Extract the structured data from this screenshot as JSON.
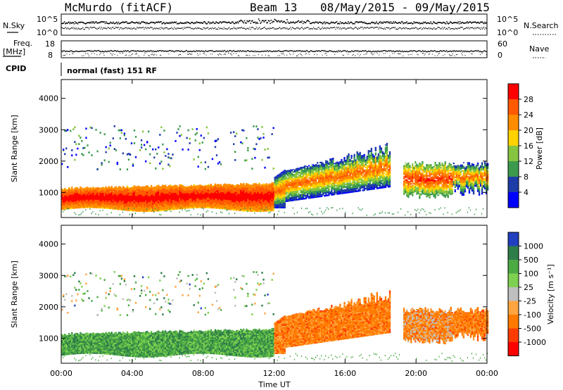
{
  "header": {
    "station": "McMurdo (fitACF)",
    "beam": "Beam 13",
    "date_range": "08/May/2015 - 09/May/2015",
    "cpid_text": "normal (fast) 151 RF"
  },
  "labels": {
    "nsky": "N.Sky",
    "freq1": "Freq.",
    "freq2": "[MHz]",
    "cpid": "CPID",
    "nsearch": "N.Search",
    "nave": "Nave",
    "nsky_top": "10^5",
    "nsky_bottom": "10^0",
    "nsearch_top": "10^5",
    "nsearch_bottom": "10^0",
    "freq_top": "18",
    "freq_bottom": "8",
    "nave_top": "60",
    "nave_bottom": "0",
    "slant_range": "Slant Range [km]",
    "time_label": "Time UT",
    "power_label": "Power [dB]",
    "velocity_label": "Velocity [m s⁻¹]"
  },
  "chart_data": [
    {
      "type": "heatmap",
      "panel": "power",
      "xlabel": "Time UT",
      "ylabel": "Slant Range [km]",
      "xlim": [
        0,
        24
      ],
      "ylim": [
        200,
        4600
      ],
      "x_ticks": [
        "00:00",
        "04:00",
        "08:00",
        "12:00",
        "16:00",
        "20:00",
        "00:00"
      ],
      "y_ticks": [
        "1000",
        "2000",
        "3000",
        "4000"
      ],
      "colorbar": {
        "label": "Power [dB]",
        "ticks": [
          "28",
          "24",
          "20",
          "16",
          "12",
          "8",
          "4"
        ],
        "colors": [
          "#ff0000",
          "#ff5a00",
          "#ff8c00",
          "#ffd200",
          "#86c540",
          "#3c9a4e",
          "#1e3ca8",
          "#0000ff"
        ]
      },
      "regions": [
        {
          "t": [
            0,
            12
          ],
          "r": [
            450,
            1150
          ],
          "level": "high"
        },
        {
          "t": [
            12,
            16.5
          ],
          "r": [
            1300,
            2300
          ],
          "level": "medium"
        },
        {
          "t": [
            19,
            22
          ],
          "r": [
            900,
            1900
          ],
          "level": "high"
        },
        {
          "t": [
            0,
            8
          ],
          "r": [
            1800,
            3200
          ],
          "level": "low"
        }
      ]
    },
    {
      "type": "heatmap",
      "panel": "velocity",
      "xlabel": "Time UT",
      "ylabel": "Slant Range [km]",
      "xlim": [
        0,
        24
      ],
      "ylim": [
        200,
        4600
      ],
      "x_ticks": [
        "00:00",
        "04:00",
        "08:00",
        "12:00",
        "16:00",
        "20:00",
        "00:00"
      ],
      "y_ticks": [
        "1000",
        "2000",
        "3000",
        "4000"
      ],
      "colorbar": {
        "label": "Velocity [m s⁻¹]",
        "ticks": [
          "1000",
          "500",
          "100",
          "25",
          "-25",
          "-100",
          "-500",
          "-1000"
        ],
        "colors": [
          "#2040c0",
          "#2f7d4a",
          "#4caa45",
          "#7ed050",
          "#bfbfbf",
          "#ffa540",
          "#ff7a00",
          "#ff3c00",
          "#ff0000"
        ]
      },
      "regions": [
        {
          "t": [
            0,
            12
          ],
          "r": [
            450,
            1150
          ],
          "level": "positive"
        },
        {
          "t": [
            12,
            16.5
          ],
          "r": [
            500,
            2300
          ],
          "level": "negative"
        },
        {
          "t": [
            19,
            22
          ],
          "r": [
            500,
            1900
          ],
          "level": "negative"
        }
      ]
    }
  ]
}
